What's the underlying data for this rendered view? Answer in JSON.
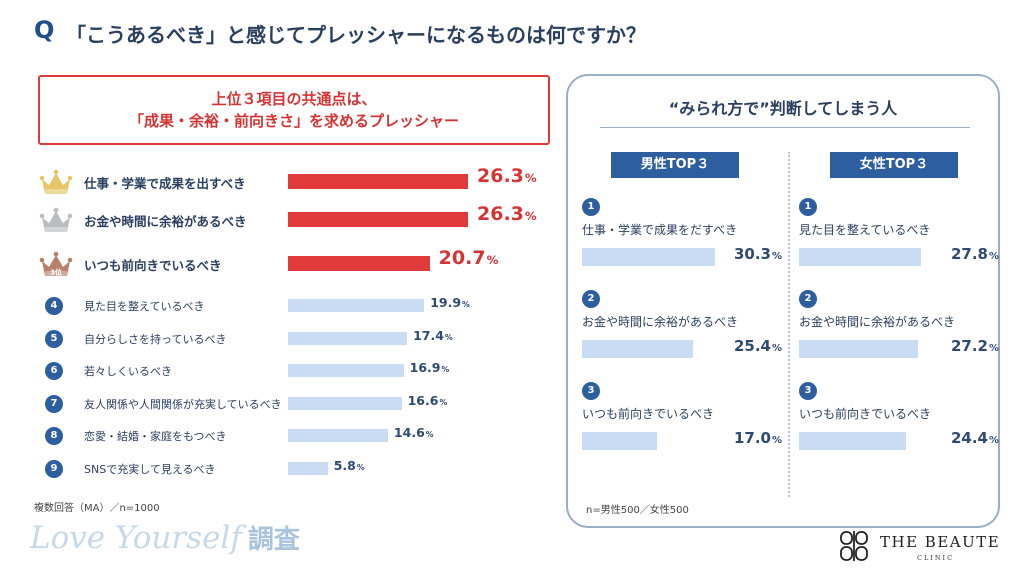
{
  "title": {
    "q": "Q",
    "text": "「こうあるべき」と感じてプレッシャーになるものは何ですか？"
  },
  "highlight": {
    "line1": "上位３項目の共通点は、",
    "line2": "「成果・余裕・前向きさ」を求めるプレッシャー"
  },
  "unit": "%",
  "ranking_badge_3": "3位",
  "colors": {
    "red": "#e03a3a",
    "navy": "#2d5fa0",
    "bar_blue": "#c9dcf3",
    "gold": "#e7c66a",
    "silver": "#b9bcc2",
    "bronze": "#b8806a"
  },
  "notes": {
    "left": "複数回答（MA）／n=1000",
    "right": "n=男性500／女性500"
  },
  "panel": {
    "title": "“みられ方で”判断してしまう人",
    "male_label": "男性TOP３",
    "female_label": "女性TOP３"
  },
  "footer": {
    "brand": "Love Yourself",
    "brand_kanji": "調査",
    "clinic_name": "THE BEAUTE",
    "clinic_sub": "CLINIC"
  },
  "chart_data": [
    {
      "type": "bar",
      "orientation": "horizontal",
      "categories": [
        "仕事・学業で成果を出すべき",
        "お金や時間に余裕があるべき",
        "いつも前向きでいるべき",
        "見た目を整えているべき",
        "自分らしさを持っているべき",
        "若々しくいるべき",
        "友人関係や人間関係が充実しているべき",
        "恋愛・結婚・家庭をもつべき",
        "SNSで充実して見えるべき"
      ],
      "values": [
        26.3,
        26.3,
        20.7,
        19.9,
        17.4,
        16.9,
        16.6,
        14.6,
        5.8
      ],
      "value_labels": [
        "26.3",
        "26.3",
        "20.7",
        "19.9",
        "17.4",
        "16.9",
        "16.6",
        "14.6",
        "5.8"
      ],
      "ranks": [
        "",
        "",
        "",
        "4",
        "5",
        "6",
        "7",
        "8",
        "9"
      ]
    },
    {
      "type": "bar",
      "orientation": "horizontal",
      "categories": [
        "仕事・学業で成果をだすべき",
        "お金や時間に余裕があるべき",
        "いつも前向きでいるべき"
      ],
      "values": [
        30.3,
        25.4,
        17.0
      ],
      "value_labels": [
        "30.3",
        "25.4",
        "17.0"
      ],
      "ranks": [
        "1",
        "2",
        "3"
      ]
    },
    {
      "type": "bar",
      "orientation": "horizontal",
      "categories": [
        "見た目を整えているべき",
        "お金や時間に余裕があるべき",
        "いつも前向きでいるべき"
      ],
      "values": [
        27.8,
        27.2,
        24.4
      ],
      "value_labels": [
        "27.8",
        "27.2",
        "24.4"
      ],
      "ranks": [
        "1",
        "2",
        "3"
      ]
    }
  ]
}
